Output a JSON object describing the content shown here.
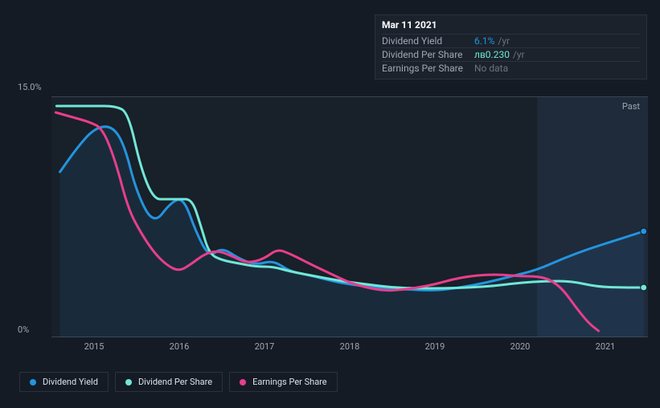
{
  "tooltip": {
    "title": "Mar 11 2021",
    "rows": [
      {
        "label": "Dividend Yield",
        "value": "6.1%",
        "suffix": "/yr",
        "color": "blue"
      },
      {
        "label": "Dividend Per Share",
        "value": "лв0.230",
        "suffix": "/yr",
        "color": "teal"
      },
      {
        "label": "Earnings Per Share",
        "value": "No data",
        "suffix": "",
        "color": "gray"
      }
    ]
  },
  "chart": {
    "type": "line",
    "ymax_label": "15.0%",
    "ymin_label": "0%",
    "ylim": [
      0,
      15
    ],
    "x_labels": [
      "2015",
      "2016",
      "2017",
      "2018",
      "2019",
      "2020",
      "2021"
    ],
    "x_range_years": [
      2014.5,
      2021.5
    ],
    "past_label": "Past",
    "background_color": "#182029",
    "past_region_start": 2020.2,
    "grid_color": "#242c38",
    "series": [
      {
        "id": "dividend_yield",
        "label": "Dividend Yield",
        "color": "#2394df",
        "fill": "rgba(35,148,223,0.10)",
        "width": 3,
        "points": [
          [
            2014.6,
            10.3
          ],
          [
            2014.8,
            11.8
          ],
          [
            2015.0,
            13.0
          ],
          [
            2015.2,
            13.2
          ],
          [
            2015.35,
            12.1
          ],
          [
            2015.5,
            9.0
          ],
          [
            2015.7,
            7.0
          ],
          [
            2015.9,
            8.4
          ],
          [
            2016.05,
            8.7
          ],
          [
            2016.2,
            6.5
          ],
          [
            2016.35,
            5.0
          ],
          [
            2016.5,
            5.6
          ],
          [
            2016.7,
            4.9
          ],
          [
            2016.9,
            4.5
          ],
          [
            2017.1,
            4.8
          ],
          [
            2017.3,
            4.1
          ],
          [
            2017.5,
            3.9
          ],
          [
            2017.8,
            3.5
          ],
          [
            2018.0,
            3.3
          ],
          [
            2018.3,
            3.1
          ],
          [
            2018.6,
            3.0
          ],
          [
            2019.0,
            2.9
          ],
          [
            2019.3,
            3.1
          ],
          [
            2019.6,
            3.4
          ],
          [
            2019.9,
            3.8
          ],
          [
            2020.2,
            4.2
          ],
          [
            2020.5,
            4.9
          ],
          [
            2020.8,
            5.5
          ],
          [
            2021.1,
            6.0
          ],
          [
            2021.45,
            6.6
          ]
        ]
      },
      {
        "id": "dividend_per_share",
        "label": "Dividend Per Share",
        "color": "#71e7d6",
        "fill": "none",
        "width": 3,
        "points": [
          [
            2014.56,
            14.4
          ],
          [
            2014.8,
            14.4
          ],
          [
            2015.0,
            14.4
          ],
          [
            2015.25,
            14.4
          ],
          [
            2015.4,
            14.0
          ],
          [
            2015.55,
            10.5
          ],
          [
            2015.7,
            8.6
          ],
          [
            2015.85,
            8.6
          ],
          [
            2016.0,
            8.6
          ],
          [
            2016.15,
            8.6
          ],
          [
            2016.25,
            7.0
          ],
          [
            2016.35,
            5.2
          ],
          [
            2016.5,
            4.8
          ],
          [
            2016.7,
            4.6
          ],
          [
            2016.9,
            4.4
          ],
          [
            2017.1,
            4.4
          ],
          [
            2017.3,
            4.1
          ],
          [
            2017.6,
            3.8
          ],
          [
            2017.9,
            3.5
          ],
          [
            2018.2,
            3.3
          ],
          [
            2018.5,
            3.1
          ],
          [
            2018.8,
            3.05
          ],
          [
            2019.1,
            3.05
          ],
          [
            2019.4,
            3.1
          ],
          [
            2019.7,
            3.2
          ],
          [
            2020.0,
            3.4
          ],
          [
            2020.3,
            3.5
          ],
          [
            2020.6,
            3.5
          ],
          [
            2020.9,
            3.15
          ],
          [
            2021.2,
            3.1
          ],
          [
            2021.45,
            3.1
          ]
        ]
      },
      {
        "id": "earnings_per_share",
        "label": "Earnings Per Share",
        "color": "#e83e8c",
        "fill": "none",
        "width": 3,
        "points": [
          [
            2014.55,
            14.0
          ],
          [
            2014.75,
            13.7
          ],
          [
            2014.95,
            13.4
          ],
          [
            2015.1,
            13.0
          ],
          [
            2015.25,
            11.0
          ],
          [
            2015.4,
            8.0
          ],
          [
            2015.55,
            6.5
          ],
          [
            2015.7,
            5.3
          ],
          [
            2015.85,
            4.5
          ],
          [
            2016.0,
            4.1
          ],
          [
            2016.15,
            4.6
          ],
          [
            2016.3,
            5.2
          ],
          [
            2016.45,
            5.4
          ],
          [
            2016.6,
            5.1
          ],
          [
            2016.8,
            4.6
          ],
          [
            2017.0,
            4.9
          ],
          [
            2017.15,
            5.5
          ],
          [
            2017.3,
            5.2
          ],
          [
            2017.45,
            4.8
          ],
          [
            2017.6,
            4.4
          ],
          [
            2017.8,
            3.9
          ],
          [
            2018.0,
            3.4
          ],
          [
            2018.2,
            3.1
          ],
          [
            2018.4,
            2.9
          ],
          [
            2018.6,
            2.95
          ],
          [
            2018.8,
            3.1
          ],
          [
            2019.0,
            3.3
          ],
          [
            2019.2,
            3.6
          ],
          [
            2019.4,
            3.8
          ],
          [
            2019.6,
            3.9
          ],
          [
            2019.8,
            3.9
          ],
          [
            2020.0,
            3.8
          ],
          [
            2020.2,
            3.8
          ],
          [
            2020.35,
            3.6
          ],
          [
            2020.5,
            3.0
          ],
          [
            2020.65,
            1.9
          ],
          [
            2020.8,
            0.9
          ],
          [
            2020.92,
            0.4
          ]
        ]
      }
    ]
  },
  "legend": {
    "items": [
      {
        "label": "Dividend Yield",
        "color": "#2394df"
      },
      {
        "label": "Dividend Per Share",
        "color": "#71e7d6"
      },
      {
        "label": "Earnings Per Share",
        "color": "#e83e8c"
      }
    ]
  }
}
